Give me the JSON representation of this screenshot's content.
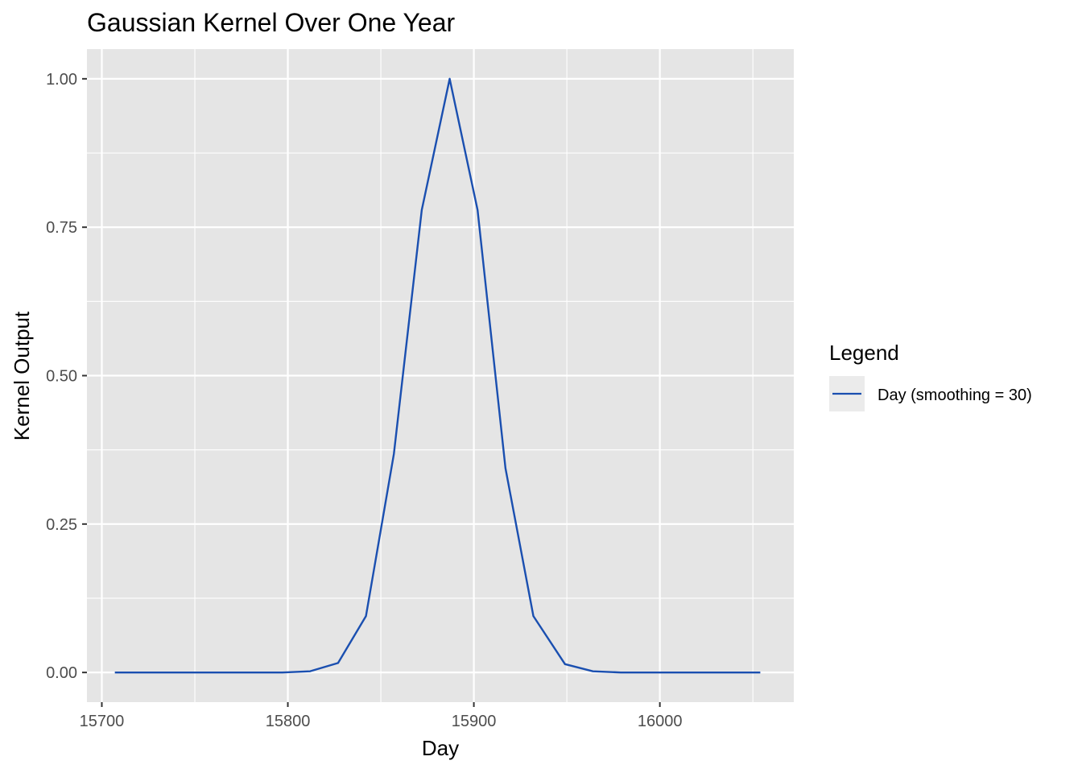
{
  "chart_data": {
    "type": "line",
    "title": "Gaussian Kernel Over One Year",
    "xlabel": "Day",
    "ylabel": "Kernel Output",
    "xlim": [
      15692,
      16072
    ],
    "ylim": [
      -0.05,
      1.05
    ],
    "x_ticks": [
      15700,
      15800,
      15900,
      16000
    ],
    "x_tick_labels": [
      "15700",
      "15800",
      "15900",
      "16000"
    ],
    "x_minor_ticks": [
      15750,
      15850,
      15950,
      16050
    ],
    "y_ticks": [
      0.0,
      0.25,
      0.5,
      0.75,
      1.0
    ],
    "y_tick_labels": [
      "0.00",
      "0.25",
      "0.50",
      "0.75",
      "1.00"
    ],
    "y_minor_ticks": [
      0.125,
      0.375,
      0.625,
      0.875
    ],
    "grid": true,
    "panel_background": "#e5e5e5",
    "grid_color": "#ffffff",
    "legend": {
      "title": "Legend",
      "position": "right"
    },
    "series": [
      {
        "name": "Day (smoothing = 30)",
        "color": "#1a4fb0",
        "x": [
          15707,
          15722,
          15737,
          15752,
          15767,
          15782,
          15797,
          15812,
          15827,
          15842,
          15857,
          15872,
          15887,
          15902,
          15917,
          15932,
          15949,
          15964,
          15979,
          15994,
          16009,
          16024,
          16039,
          16054
        ],
        "y": [
          0.0,
          0.0,
          0.0,
          0.0,
          0.0,
          0.0,
          0.0,
          0.002,
          0.016,
          0.095,
          0.368,
          0.779,
          1.0,
          0.779,
          0.344,
          0.095,
          0.014,
          0.002,
          0.0,
          0.0,
          0.0,
          0.0,
          0.0,
          0.0
        ]
      }
    ]
  }
}
